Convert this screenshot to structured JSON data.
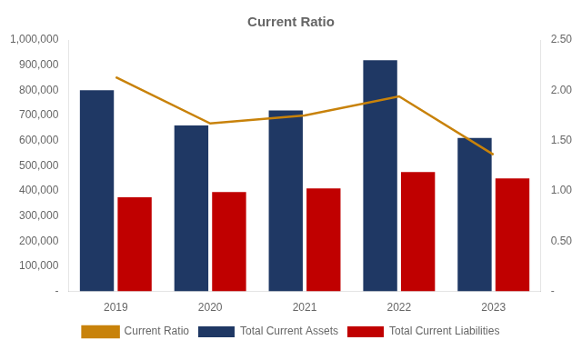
{
  "chart_data": {
    "type": "bar",
    "title": "Current Ratio",
    "categories": [
      "2019",
      "2020",
      "2021",
      "2022",
      "2023"
    ],
    "series": [
      {
        "name": "Total Current Assets",
        "type": "bar",
        "color": "#1F3864",
        "values": [
          800000,
          660000,
          720000,
          920000,
          610000
        ]
      },
      {
        "name": "Total Current Liabilities",
        "type": "bar",
        "color": "#C00000",
        "values": [
          375000,
          395000,
          410000,
          475000,
          450000
        ]
      },
      {
        "name": "Current Ratio",
        "type": "line",
        "axis": "y2",
        "color": "#C8820A",
        "values": [
          2.13,
          1.67,
          1.75,
          1.94,
          1.36
        ]
      }
    ],
    "ylim": [
      0,
      1000000
    ],
    "yticks": [
      {
        "value": 0,
        "label": "-"
      },
      {
        "value": 100000,
        "label": "100,000"
      },
      {
        "value": 200000,
        "label": "200,000"
      },
      {
        "value": 300000,
        "label": "300,000"
      },
      {
        "value": 400000,
        "label": "400,000"
      },
      {
        "value": 500000,
        "label": "500,000"
      },
      {
        "value": 600000,
        "label": "600,000"
      },
      {
        "value": 700000,
        "label": "700,000"
      },
      {
        "value": 800000,
        "label": "800,000"
      },
      {
        "value": 900000,
        "label": "900,000"
      },
      {
        "value": 1000000,
        "label": "1,000,000"
      }
    ],
    "y2lim": [
      0,
      2.5
    ],
    "y2ticks": [
      {
        "value": 0,
        "label": "-"
      },
      {
        "value": 0.5,
        "label": "0.50"
      },
      {
        "value": 1,
        "label": "1.00"
      },
      {
        "value": 1.5,
        "label": "1.50"
      },
      {
        "value": 2,
        "label": "2.00"
      },
      {
        "value": 2.5,
        "label": "2.50"
      }
    ],
    "grid": false,
    "legend": "bottom"
  }
}
